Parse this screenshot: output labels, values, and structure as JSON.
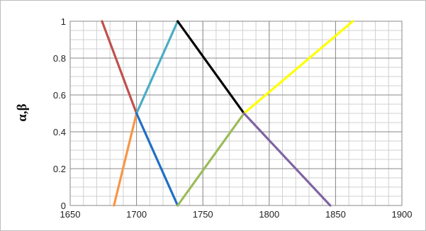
{
  "chart_data": {
    "type": "line",
    "title": "",
    "xlabel": "",
    "ylabel": "α,β",
    "xlim": [
      1650,
      1900
    ],
    "ylim": [
      0,
      1
    ],
    "x_ticks": [
      1650,
      1700,
      1750,
      1800,
      1850,
      1900
    ],
    "x_tick_labels": [
      "1650",
      "1700",
      "1750",
      "1800",
      "1850",
      "1900"
    ],
    "y_ticks": [
      0,
      0.2,
      0.4,
      0.6,
      0.8,
      1
    ],
    "y_tick_labels": [
      "0",
      "0.2",
      "0.4",
      "0.6",
      "0.8",
      "1"
    ],
    "minor_grid": {
      "x_step": 10,
      "y_step": 0.05
    },
    "grid": true,
    "legend": "none",
    "series": [
      {
        "color": "#c0504d",
        "x": [
          1674,
          1700
        ],
        "y": [
          1,
          0.5
        ]
      },
      {
        "color": "#f79646",
        "x": [
          1683,
          1700
        ],
        "y": [
          0,
          0.5
        ]
      },
      {
        "color": "#4bacc6",
        "x": [
          1700,
          1731
        ],
        "y": [
          0.5,
          1
        ]
      },
      {
        "color": "#1f6fc5",
        "x": [
          1700,
          1731
        ],
        "y": [
          0.5,
          0
        ]
      },
      {
        "color": "#000000",
        "x": [
          1731,
          1781
        ],
        "y": [
          1,
          0.5
        ]
      },
      {
        "color": "#9bbb59",
        "x": [
          1731,
          1781
        ],
        "y": [
          0,
          0.5
        ]
      },
      {
        "color": "#ffff00",
        "x": [
          1781,
          1863
        ],
        "y": [
          0.5,
          1
        ]
      },
      {
        "color": "#8064a2",
        "x": [
          1781,
          1846
        ],
        "y": [
          0.5,
          0
        ]
      }
    ]
  }
}
